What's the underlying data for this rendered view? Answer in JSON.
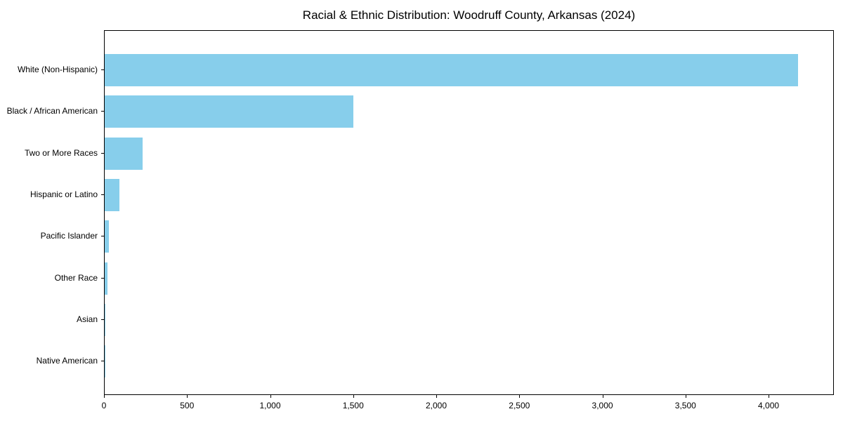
{
  "chart_data": {
    "type": "bar",
    "orientation": "horizontal",
    "title": "Racial & Ethnic Distribution: Woodruff County, Arkansas (2024)",
    "categories": [
      "White (Non-Hispanic)",
      "Black / African American",
      "Two or More Races",
      "Hispanic or Latino",
      "Pacific Islander",
      "Other Race",
      "Asian",
      "Native American"
    ],
    "values": [
      4175,
      1497,
      229,
      88,
      27,
      18,
      4,
      1
    ],
    "bar_color": "#87CEEB",
    "xlabel": "",
    "ylabel": "",
    "xlim": [
      0,
      4393
    ],
    "xticks": [
      {
        "value": 0,
        "label": "0"
      },
      {
        "value": 500,
        "label": "500"
      },
      {
        "value": 1000,
        "label": "1,000"
      },
      {
        "value": 1500,
        "label": "1,500"
      },
      {
        "value": 2000,
        "label": "2,000"
      },
      {
        "value": 2500,
        "label": "2,500"
      },
      {
        "value": 3000,
        "label": "3,000"
      },
      {
        "value": 3500,
        "label": "3,500"
      },
      {
        "value": 4000,
        "label": "4,000"
      }
    ],
    "grid": false,
    "legend": false,
    "text_color": "#000000",
    "axis_color": "#000000"
  }
}
